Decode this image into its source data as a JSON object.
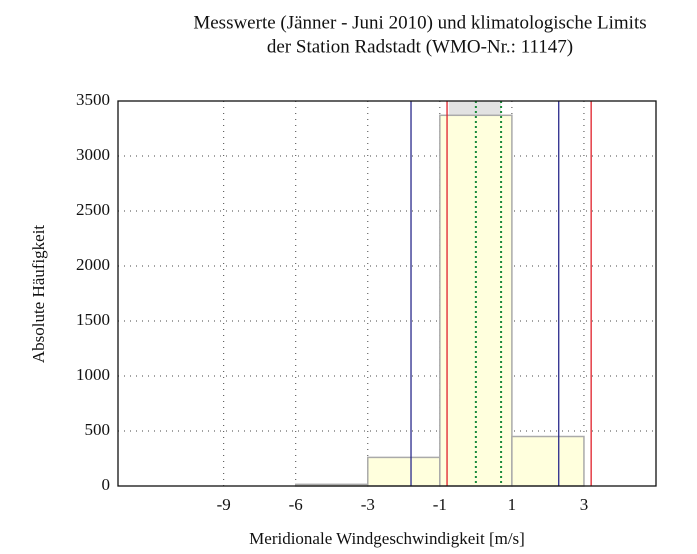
{
  "chart_data": {
    "type": "histogram",
    "title": [
      "Messwerte (Jänner - Juni 2010) und klimatologische Limits",
      "der Station Radstadt (WMO-Nr.: 11147)"
    ],
    "xlabel": "Meridionale Windgeschwindigkeit [m/s]",
    "ylabel": "Absolute Häufigkeit",
    "bins": [
      -6,
      -3,
      -1,
      1,
      3
    ],
    "values": [
      15,
      260,
      3370,
      450
    ],
    "color": "#ffffdd",
    "edgecolor": "#aaaaaa",
    "xlim": [
      -13.4,
      5
    ],
    "xticks": [
      -9,
      -6,
      -3,
      -1,
      1,
      3
    ],
    "ylim": [
      0,
      3500
    ],
    "yticks": [
      0,
      500,
      1000,
      1500,
      2000,
      2500,
      3000,
      3500
    ],
    "grid": true,
    "band": {
      "range": [
        -0.75,
        0.7
      ],
      "color": "#e2e2e2"
    },
    "vlines": [
      {
        "values": [
          -1.8,
          2.3
        ],
        "color": "#2a2a8c",
        "style": "solid"
      },
      {
        "values": [
          -0.8,
          3.2
        ],
        "color": "#e0202a",
        "style": "solid"
      },
      {
        "values": [
          0,
          0.7
        ],
        "color": "#1a8a3a",
        "style": "dotted"
      }
    ]
  }
}
